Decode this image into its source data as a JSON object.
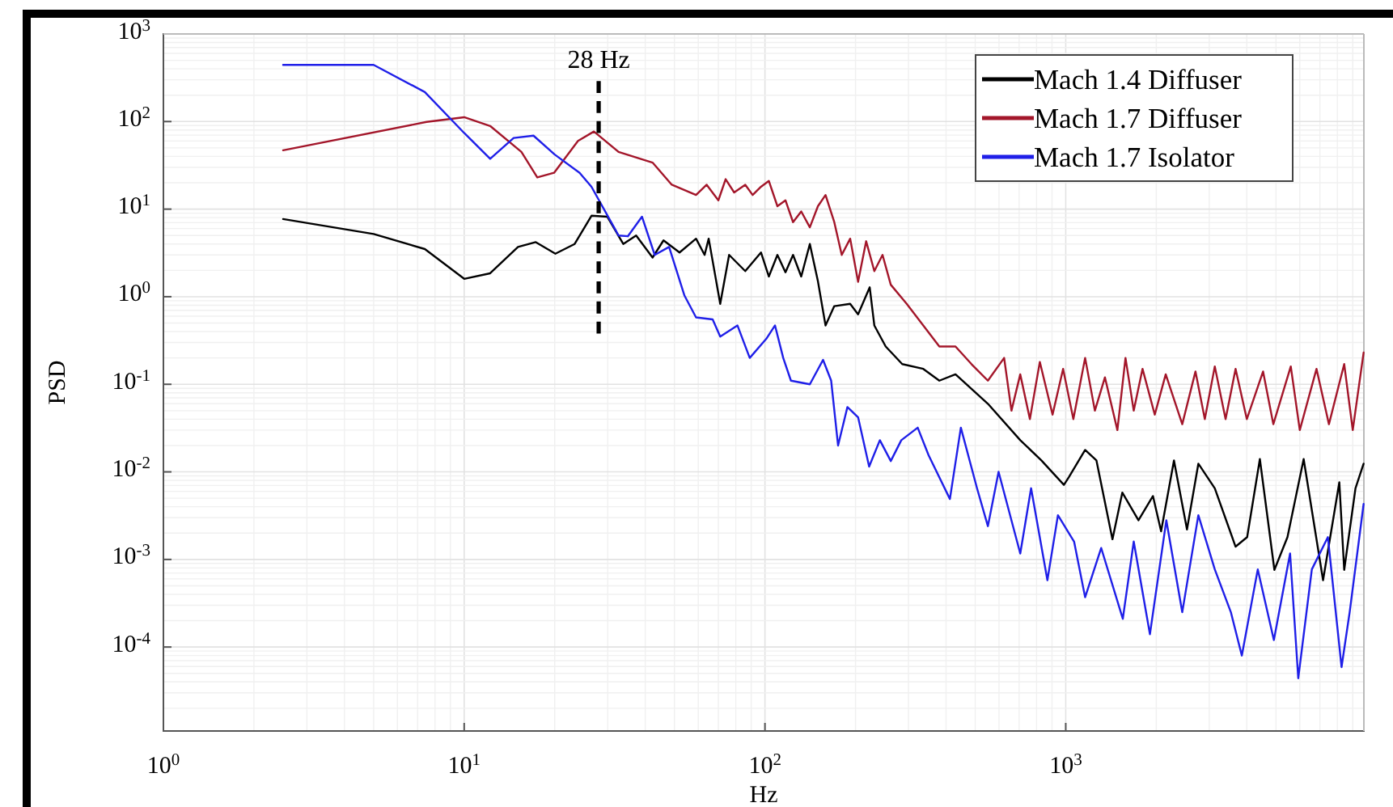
{
  "chart_data": {
    "type": "line",
    "xlabel": "Hz",
    "ylabel": "PSD",
    "log": "xy",
    "grid": true,
    "legend": "top right",
    "line_style": "solid",
    "xlim": [
      1,
      9800
    ],
    "ylim": [
      1.1e-05,
      1000
    ],
    "xticks": [
      {
        "value": 1,
        "label": "10$^{0}$"
      },
      {
        "value": 10,
        "label": "10$^{1}$"
      },
      {
        "value": 100,
        "label": "10$^{2}$"
      },
      {
        "value": 1000,
        "label": "10$^{3}$"
      }
    ],
    "yticks": [
      {
        "value": 0.0001,
        "label": "10$^{-4}$"
      },
      {
        "value": 0.001,
        "label": "10$^{-3}$"
      },
      {
        "value": 0.01,
        "label": "10$^{-2}$"
      },
      {
        "value": 0.1,
        "label": "10$^{-1}$"
      },
      {
        "value": 1,
        "label": "10$^{0}$"
      },
      {
        "value": 10,
        "label": "10$^{1}$"
      },
      {
        "value": 100,
        "label": "10$^{2}$"
      },
      {
        "value": 1000,
        "label": "10$^{3}$"
      }
    ],
    "annotations": [
      "28 Hz"
    ],
    "series": [
      {
        "name": "Mach 1.4 Diffuser",
        "color": "#000000",
        "x": [
          2.5,
          5,
          7.4,
          10,
          12.2,
          15.1,
          17.3,
          20.1,
          23.3,
          26.5,
          29.9,
          33.8,
          37.3,
          42.3,
          46,
          52,
          59,
          63,
          65,
          71,
          76,
          86,
          97,
          103,
          110,
          117,
          124,
          132,
          141,
          150,
          159,
          170,
          192,
          204,
          223,
          231,
          252,
          286,
          336,
          380,
          430,
          551,
          706,
          830,
          986,
          1024,
          1160,
          1265,
          1430,
          1542,
          1745,
          1950,
          2075,
          2290,
          2530,
          2760,
          3130,
          3670,
          4010,
          4420,
          4940,
          5460,
          6180,
          7170,
          8120,
          8430,
          9190,
          9780
        ],
        "values": [
          7.7,
          5.2,
          3.5,
          1.6,
          1.85,
          3.7,
          4.2,
          3.1,
          4.0,
          8.4,
          8.2,
          4.0,
          5,
          2.8,
          4.4,
          3.2,
          4.6,
          3.0,
          4.6,
          0.83,
          3.0,
          1.96,
          3.2,
          1.7,
          3.0,
          1.9,
          3.0,
          1.7,
          4.0,
          1.5,
          0.47,
          0.78,
          0.83,
          0.63,
          1.28,
          0.47,
          0.27,
          0.17,
          0.15,
          0.11,
          0.13,
          0.06,
          0.023,
          0.0135,
          0.0071,
          0.0087,
          0.0178,
          0.0135,
          0.0017,
          0.0058,
          0.0028,
          0.0053,
          0.0021,
          0.0135,
          0.0022,
          0.0124,
          0.0065,
          0.0014,
          0.0018,
          0.014,
          0.00076,
          0.0018,
          0.014,
          0.00058,
          0.0076,
          0.00076,
          0.0065,
          0.0124
        ]
      },
      {
        "name": "Mach 1.7 Diffuser",
        "color": "#a3162a",
        "x": [
          2.5,
          7.5,
          10,
          12.2,
          15.5,
          17.5,
          19.9,
          23.9,
          27,
          32.6,
          42.3,
          49,
          59,
          64,
          70,
          74,
          79,
          86,
          91,
          97,
          103,
          110,
          117,
          124,
          132,
          141,
          150,
          159,
          170,
          180,
          192,
          204,
          217,
          231,
          246,
          262,
          296,
          336,
          380,
          430,
          486,
          551,
          624,
          660,
          706,
          760,
          820,
          904,
          980,
          1060,
          1160,
          1250,
          1350,
          1485,
          1580,
          1683,
          1800,
          1977,
          2150,
          2440,
          2700,
          2900,
          3130,
          3400,
          3670,
          4000,
          4530,
          4900,
          5600,
          6000,
          6820,
          7500,
          8430,
          9000,
          9780
        ],
        "values": [
          47,
          99,
          112,
          89,
          45,
          23,
          26,
          60,
          77,
          45,
          34,
          19,
          14.5,
          19,
          12.6,
          22,
          15.5,
          19,
          14.5,
          18,
          21,
          10.8,
          12.6,
          7.1,
          9.4,
          6.2,
          10.8,
          14.5,
          7.1,
          3.0,
          4.6,
          1.48,
          4.3,
          1.96,
          3.0,
          1.37,
          0.83,
          0.47,
          0.27,
          0.27,
          0.17,
          0.11,
          0.2,
          0.05,
          0.13,
          0.04,
          0.18,
          0.045,
          0.15,
          0.04,
          0.2,
          0.05,
          0.12,
          0.03,
          0.2,
          0.05,
          0.15,
          0.045,
          0.13,
          0.035,
          0.14,
          0.04,
          0.16,
          0.04,
          0.15,
          0.04,
          0.14,
          0.035,
          0.16,
          0.03,
          0.15,
          0.035,
          0.17,
          0.03,
          0.23
        ]
      },
      {
        "name": "Mach 1.7 Isolator",
        "color": "#1f1fe8",
        "x": [
          2.5,
          5,
          7.4,
          10,
          12.2,
          14.6,
          17,
          20,
          24.2,
          26.5,
          32.6,
          35,
          39,
          43,
          48,
          54,
          59,
          67,
          71,
          81,
          89,
          101,
          108,
          115,
          122,
          141,
          156,
          166,
          175,
          188,
          204,
          222,
          241,
          262,
          284,
          322,
          350,
          412,
          448,
          507,
          551,
          598,
          706,
          767,
          869,
          942,
          1066,
          1160,
          1312,
          1548,
          1683,
          1905,
          2160,
          2440,
          2760,
          3130,
          3540,
          3850,
          4350,
          4920,
          5570,
          5930,
          6580,
          7440,
          8260,
          8790,
          9780
        ],
        "values": [
          444,
          444,
          217,
          74,
          37.5,
          65,
          69,
          42,
          26,
          18,
          5.0,
          4.9,
          8.2,
          3.0,
          3.7,
          1.03,
          0.58,
          0.55,
          0.35,
          0.47,
          0.2,
          0.33,
          0.47,
          0.2,
          0.11,
          0.1,
          0.19,
          0.11,
          0.02,
          0.055,
          0.042,
          0.0115,
          0.023,
          0.0133,
          0.023,
          0.032,
          0.0155,
          0.0049,
          0.032,
          0.0065,
          0.0024,
          0.01,
          0.00117,
          0.0065,
          0.00058,
          0.0032,
          0.0016,
          0.00037,
          0.00135,
          0.00021,
          0.0016,
          0.00014,
          0.0028,
          0.00025,
          0.0032,
          0.00077,
          0.00025,
          8e-05,
          0.00077,
          0.00012,
          0.00117,
          4.4e-05,
          0.00077,
          0.0018,
          5.9e-05,
          0.00025,
          0.0043
        ]
      },
      {
        "type": "line",
        "color": "#000000",
        "line_style": "dashed",
        "x": [
          28,
          28
        ],
        "values": [
          0.38,
          290
        ]
      }
    ]
  }
}
